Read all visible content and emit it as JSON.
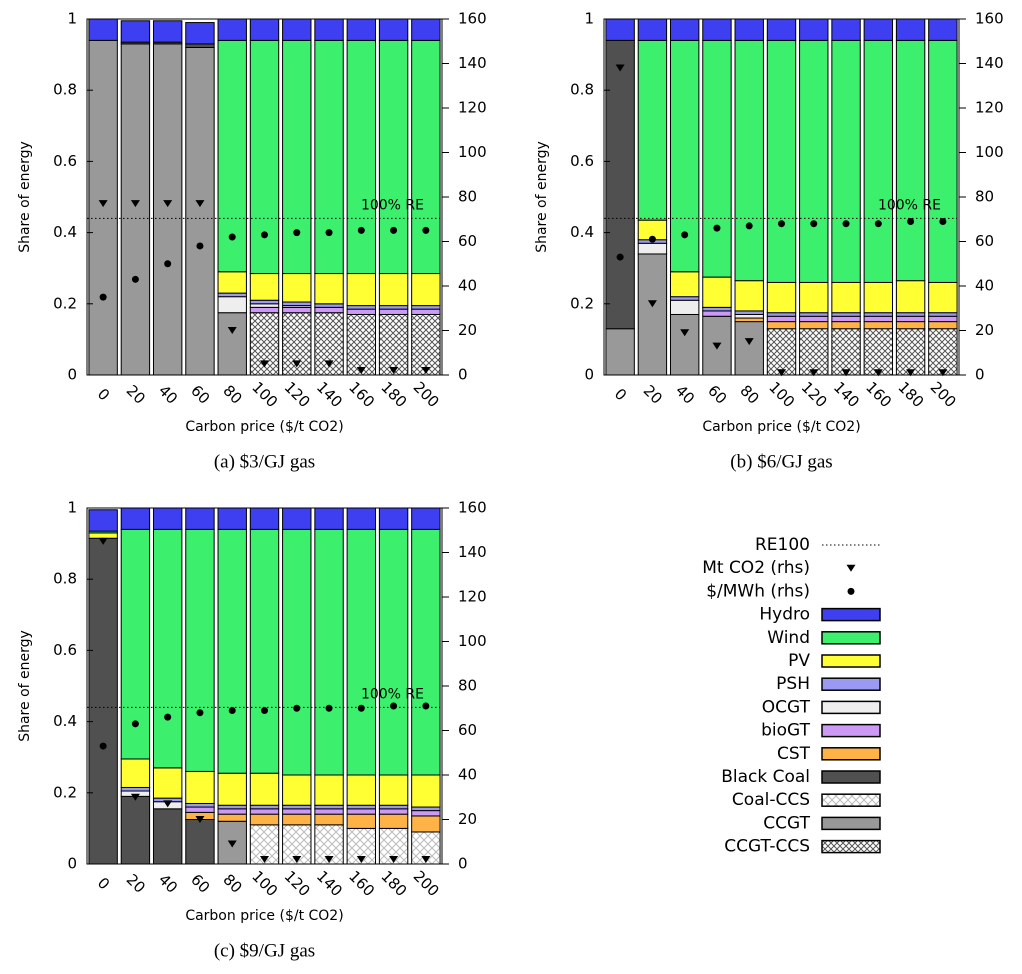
{
  "chart_data": [
    {
      "type": "bar",
      "stacked": true,
      "caption": "(a) $3/GJ gas",
      "xlabel": "Carbon price ($/t CO2)",
      "ylabel": "Share of energy",
      "categories": [
        "0",
        "20",
        "40",
        "60",
        "80",
        "100",
        "120",
        "140",
        "160",
        "180",
        "200"
      ],
      "ylim": [
        0,
        1
      ],
      "yticks": [
        0,
        0.2,
        0.4,
        0.6,
        0.8,
        1
      ],
      "y2lim": [
        0,
        160
      ],
      "y2ticks": [
        0,
        20,
        40,
        60,
        80,
        100,
        120,
        140,
        160
      ],
      "line": {
        "name": "RE100",
        "value": 0.44,
        "label": "100% RE"
      },
      "points": [
        {
          "name": "Mt CO2 (rhs)",
          "marker": "triangle",
          "axis": "y2",
          "values": [
            77,
            77,
            77,
            77,
            20,
            5,
            5,
            5,
            2,
            2,
            2
          ]
        },
        {
          "name": "$/MWh (rhs)",
          "marker": "circle",
          "axis": "y2",
          "values": [
            35,
            43,
            50,
            58,
            62,
            63,
            64,
            64,
            65,
            65,
            65
          ]
        }
      ],
      "series": [
        {
          "name": "Hydro",
          "color": "#3f3ff2",
          "values": [
            0.06,
            0.06,
            0.06,
            0.06,
            0.06,
            0.06,
            0.06,
            0.06,
            0.06,
            0.06,
            0.06
          ]
        },
        {
          "name": "Wind",
          "color": "#3cef6c",
          "values": [
            0,
            0,
            0,
            0,
            0.65,
            0.655,
            0.655,
            0.655,
            0.655,
            0.655,
            0.655
          ]
        },
        {
          "name": "PV",
          "color": "#ffff33",
          "values": [
            0,
            0,
            0,
            0,
            0.06,
            0.075,
            0.08,
            0.085,
            0.09,
            0.09,
            0.09
          ]
        },
        {
          "name": "PSH",
          "color": "#9a9af2",
          "values": [
            0,
            0,
            0,
            0,
            0.01,
            0.01,
            0.01,
            0.01,
            0.01,
            0.01,
            0.01
          ]
        },
        {
          "name": "OCGT",
          "color": "#eeeeee",
          "values": [
            0,
            0,
            0,
            0,
            0.045,
            0.01,
            0.005,
            0,
            0,
            0,
            0
          ]
        },
        {
          "name": "bioGT",
          "color": "#cc99f5",
          "values": [
            0,
            0,
            0,
            0,
            0,
            0.015,
            0.015,
            0.015,
            0.015,
            0.015,
            0.015
          ]
        },
        {
          "name": "CST",
          "color": "#ffb347",
          "values": [
            0,
            0,
            0,
            0,
            0,
            0,
            0,
            0,
            0,
            0,
            0
          ]
        },
        {
          "name": "Black Coal",
          "color": "#505050",
          "values": [
            0,
            0.005,
            0.005,
            0.01,
            0,
            0,
            0,
            0,
            0,
            0,
            0
          ]
        },
        {
          "name": "Coal-CCS",
          "color": "#bbbbbb",
          "hatch": true,
          "values": [
            0,
            0,
            0,
            0,
            0,
            0,
            0,
            0,
            0,
            0,
            0
          ]
        },
        {
          "name": "CCGT",
          "color": "#999999",
          "values": [
            0.94,
            0.93,
            0.93,
            0.92,
            0.175,
            0,
            0,
            0,
            0,
            0,
            0
          ]
        },
        {
          "name": "CCGT-CCS",
          "color": "#555555",
          "hatch": true,
          "values": [
            0,
            0,
            0,
            0,
            0,
            0.175,
            0.175,
            0.175,
            0.17,
            0.17,
            0.17
          ]
        }
      ]
    },
    {
      "type": "bar",
      "stacked": true,
      "caption": "(b) $6/GJ gas",
      "xlabel": "Carbon price ($/t CO2)",
      "ylabel": "Share of energy",
      "categories": [
        "0",
        "20",
        "40",
        "60",
        "80",
        "100",
        "120",
        "140",
        "160",
        "180",
        "200"
      ],
      "ylim": [
        0,
        1
      ],
      "yticks": [
        0,
        0.2,
        0.4,
        0.6,
        0.8,
        1
      ],
      "y2lim": [
        0,
        160
      ],
      "y2ticks": [
        0,
        20,
        40,
        60,
        80,
        100,
        120,
        140,
        160
      ],
      "line": {
        "value": 0.44,
        "label": "100% RE"
      },
      "points": [
        {
          "axis": "y2",
          "values": [
            138,
            32,
            19,
            13,
            15,
            1,
            1,
            1,
            1,
            1,
            1
          ]
        },
        {
          "axis": "y2",
          "values": [
            53,
            61,
            63,
            66,
            67,
            68,
            68,
            68,
            68,
            69,
            69
          ]
        }
      ],
      "series": [
        {
          "values": [
            0.06,
            0.06,
            0.06,
            0.06,
            0.06,
            0.06,
            0.06,
            0.06,
            0.06,
            0.06,
            0.06
          ]
        },
        {
          "values": [
            0,
            0.505,
            0.65,
            0.665,
            0.675,
            0.68,
            0.68,
            0.68,
            0.68,
            0.675,
            0.68
          ]
        },
        {
          "values": [
            0,
            0.055,
            0.07,
            0.085,
            0.085,
            0.085,
            0.085,
            0.085,
            0.085,
            0.09,
            0.085
          ]
        },
        {
          "values": [
            0,
            0.01,
            0.01,
            0.01,
            0.01,
            0.01,
            0.01,
            0.01,
            0.01,
            0.01,
            0.01
          ]
        },
        {
          "values": [
            0,
            0.03,
            0.04,
            0,
            0.01,
            0,
            0,
            0,
            0,
            0,
            0
          ]
        },
        {
          "values": [
            0,
            0,
            0,
            0.015,
            0,
            0.015,
            0.015,
            0.015,
            0.015,
            0.015,
            0.015
          ]
        },
        {
          "values": [
            0,
            0,
            0,
            0,
            0.01,
            0.02,
            0.02,
            0.02,
            0.02,
            0.02,
            0.02
          ]
        },
        {
          "values": [
            0.81,
            0,
            0,
            0,
            0,
            0,
            0,
            0,
            0,
            0,
            0
          ]
        },
        {
          "values": [
            0,
            0,
            0,
            0,
            0,
            0,
            0,
            0,
            0,
            0,
            0
          ]
        },
        {
          "values": [
            0.13,
            0.34,
            0.17,
            0.165,
            0.15,
            0,
            0,
            0,
            0,
            0,
            0
          ]
        },
        {
          "values": [
            0,
            0,
            0,
            0,
            0,
            0.13,
            0.13,
            0.13,
            0.13,
            0.13,
            0.13
          ]
        }
      ]
    },
    {
      "type": "bar",
      "stacked": true,
      "caption": "(c) $9/GJ gas",
      "xlabel": "Carbon price ($/t CO2)",
      "ylabel": "Share of energy",
      "categories": [
        "0",
        "20",
        "40",
        "60",
        "80",
        "100",
        "120",
        "140",
        "160",
        "180",
        "200"
      ],
      "ylim": [
        0,
        1
      ],
      "yticks": [
        0,
        0.2,
        0.4,
        0.6,
        0.8,
        1
      ],
      "y2lim": [
        0,
        160
      ],
      "y2ticks": [
        0,
        20,
        40,
        60,
        80,
        100,
        120,
        140,
        160
      ],
      "line": {
        "value": 0.44,
        "label": "100% RE"
      },
      "points": [
        {
          "axis": "y2",
          "values": [
            145,
            30,
            27,
            20,
            9,
            2,
            2,
            2,
            2,
            2,
            2
          ]
        },
        {
          "axis": "y2",
          "values": [
            53,
            63,
            66,
            68,
            69,
            69,
            70,
            70,
            70,
            71,
            71
          ]
        }
      ],
      "series": [
        {
          "values": [
            0.06,
            0.06,
            0.06,
            0.06,
            0.06,
            0.06,
            0.06,
            0.06,
            0.06,
            0.06,
            0.06
          ]
        },
        {
          "values": [
            0.005,
            0.645,
            0.67,
            0.68,
            0.685,
            0.685,
            0.69,
            0.69,
            0.69,
            0.69,
            0.69
          ]
        },
        {
          "values": [
            0.015,
            0.08,
            0.085,
            0.09,
            0.09,
            0.09,
            0.085,
            0.085,
            0.085,
            0.085,
            0.09
          ]
        },
        {
          "values": [
            0,
            0.01,
            0.01,
            0.01,
            0.01,
            0.01,
            0.01,
            0.01,
            0.01,
            0.01,
            0.01
          ]
        },
        {
          "values": [
            0,
            0.015,
            0.02,
            0,
            0,
            0,
            0,
            0,
            0,
            0,
            0
          ]
        },
        {
          "values": [
            0,
            0,
            0,
            0.015,
            0.015,
            0.015,
            0.015,
            0.015,
            0.015,
            0.015,
            0.015
          ]
        },
        {
          "values": [
            0,
            0,
            0,
            0.02,
            0.02,
            0.03,
            0.03,
            0.03,
            0.04,
            0.04,
            0.045
          ]
        },
        {
          "values": [
            0.915,
            0.19,
            0.155,
            0.125,
            0,
            0,
            0,
            0,
            0,
            0,
            0
          ]
        },
        {
          "values": [
            0,
            0,
            0,
            0,
            0,
            0.11,
            0.11,
            0.11,
            0.1,
            0.1,
            0.09
          ]
        },
        {
          "values": [
            0,
            0,
            0,
            0,
            0.12,
            0,
            0,
            0,
            0,
            0,
            0
          ]
        },
        {
          "values": [
            0,
            0,
            0,
            0,
            0,
            0,
            0,
            0,
            0,
            0,
            0
          ]
        }
      ]
    }
  ]
}
